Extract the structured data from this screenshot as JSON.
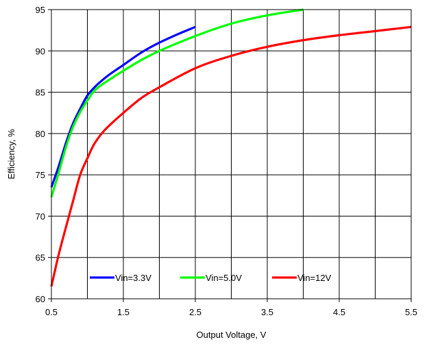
{
  "chart_data": {
    "type": "line",
    "title": "",
    "xlabel": "Output Voltage, V",
    "ylabel": "Efficiency, %",
    "xlim": [
      0.5,
      5.5
    ],
    "ylim": [
      60,
      95
    ],
    "xticks": [
      "0.5",
      "1.5",
      "2.5",
      "3.5",
      "4.5",
      "5.5"
    ],
    "yticks": [
      "60",
      "65",
      "70",
      "75",
      "80",
      "85",
      "90",
      "95"
    ],
    "grid": true,
    "legend_position": "bottom-center inside",
    "series": [
      {
        "name": "Vin=3.3V",
        "color": "#0000ff",
        "x": [
          0.5,
          0.6,
          0.7,
          0.8,
          0.9,
          1.0,
          1.1,
          1.2,
          1.3,
          1.5,
          1.75,
          2.0,
          2.25,
          2.5
        ],
        "y": [
          73.5,
          76.0,
          78.8,
          81.2,
          83.0,
          84.6,
          85.6,
          86.4,
          87.1,
          88.3,
          89.8,
          91.0,
          92.0,
          92.9
        ]
      },
      {
        "name": "Vin=5.0V",
        "color": "#00ff00",
        "x": [
          0.5,
          0.6,
          0.7,
          0.8,
          0.9,
          1.0,
          1.1,
          1.25,
          1.5,
          1.75,
          2.0,
          2.5,
          3.0,
          3.5,
          4.0
        ],
        "y": [
          72.3,
          75.2,
          78.3,
          80.8,
          82.6,
          84.0,
          85.2,
          86.2,
          87.6,
          88.9,
          90.0,
          91.8,
          93.3,
          94.3,
          95.0
        ]
      },
      {
        "name": "Vin=12V",
        "color": "#ff0000",
        "x": [
          0.5,
          0.6,
          0.7,
          0.8,
          0.9,
          1.0,
          1.1,
          1.25,
          1.5,
          1.75,
          2.0,
          2.5,
          3.0,
          3.5,
          4.0,
          4.5,
          5.0,
          5.5
        ],
        "y": [
          61.5,
          65.3,
          68.6,
          71.8,
          75.0,
          77.0,
          78.8,
          80.5,
          82.5,
          84.3,
          85.6,
          87.9,
          89.4,
          90.5,
          91.3,
          91.9,
          92.4,
          92.9
        ]
      }
    ]
  }
}
